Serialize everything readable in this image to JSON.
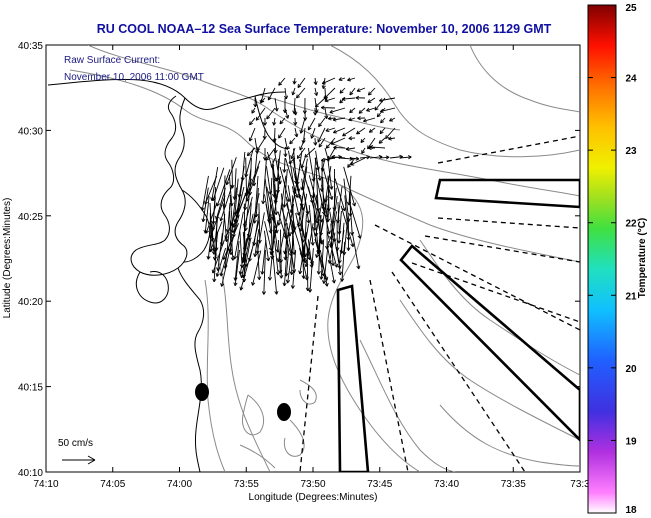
{
  "title": "RU COOL  NOAA–12  Sea Surface Temperature:  November 10, 2006 1129 GMT",
  "legend": {
    "line1": "Raw Surface Current:",
    "line2": "November 10, 2006 11:00 GMT"
  },
  "scale": {
    "label": "50 cm/s"
  },
  "axes": {
    "xlabel": "Longitude (Degrees:Minutes)",
    "ylabel": "Latitude (Degrees:Minutes)",
    "xticks": [
      "74:10",
      "74:05",
      "74:00",
      "73:55",
      "73:50",
      "73:45",
      "73:40",
      "73:35",
      "73:3"
    ],
    "yticks": [
      "40:35",
      "40:30",
      "40:25",
      "40:20",
      "40:15",
      "40:10"
    ]
  },
  "colorbar": {
    "label": "Temperature (°C)",
    "min": 18,
    "max": 25,
    "ticks": [
      "25",
      "24",
      "23",
      "22",
      "21",
      "20",
      "19",
      "18"
    ]
  },
  "colors": {
    "title": "#1010a0",
    "legend_text": "#1a1a80",
    "land_outline": "#000000",
    "bathymetry": "#8a8a8a",
    "vectors": "#000000"
  }
}
